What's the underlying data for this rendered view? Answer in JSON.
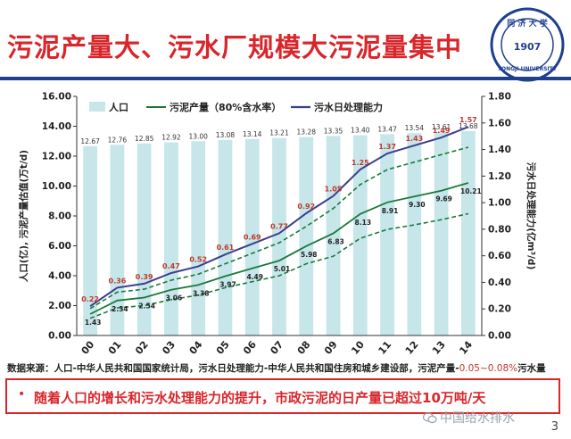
{
  "slide": {
    "title": "污泥产量大、污水厂规模大污泥量集中",
    "logo_text": "同济大学 1907 TONGJI UNIVERSITY",
    "source_note_main": "数据来源：人口-中华人民共和国国家统计局，污水日处理能力-中华人民共和国住房和城乡建设部，污泥产量-",
    "source_note_pct": "0.05~0.08%",
    "source_note_tail": "污水量",
    "callout_bullet": "•",
    "callout_text": "随着人口的增长和污水处理能力的提升，市政污泥的日产量已超过10万吨/天",
    "watermark": "中国给水排水",
    "page_number": "3"
  },
  "colors": {
    "title": "#d8262b",
    "rule": "#1f3f8f",
    "bar": "#c6e6ea",
    "sludge_line": "#1a7a3a",
    "capacity_line": "#3b3f8f",
    "capacity_label": "#c0392b"
  },
  "chart_data": {
    "type": "bar+line",
    "x": [
      "2000",
      "2001",
      "2002",
      "2003",
      "2004",
      "2005",
      "2006",
      "2007",
      "2008",
      "2009",
      "2010",
      "2011",
      "2012",
      "2013",
      "2014"
    ],
    "x_tick_labels": [
      "00",
      "01",
      "02",
      "03",
      "04",
      "05",
      "06",
      "07",
      "08",
      "09",
      "10",
      "11",
      "12",
      "13",
      "14"
    ],
    "ylabel": "人口(亿), 污泥产量估值(万t/d)",
    "y2label": "污水日处理能力(亿m³/d)",
    "ylim": [
      0,
      16
    ],
    "y_ticks": [
      "0.00",
      "2.00",
      "4.00",
      "6.00",
      "8.00",
      "10.00",
      "12.00",
      "14.00",
      "16.00"
    ],
    "y2lim": [
      0,
      1.8
    ],
    "y2_ticks": [
      "0.00",
      "0.20",
      "0.40",
      "0.60",
      "0.80",
      "1.00",
      "1.20",
      "1.40",
      "1.60",
      "1.80"
    ],
    "grid": false,
    "legend_position": "top",
    "series": [
      {
        "name": "人口",
        "type": "bar",
        "axis": "left",
        "values": [
          12.67,
          12.76,
          12.85,
          12.92,
          13.0,
          13.08,
          13.14,
          13.21,
          13.28,
          13.35,
          13.4,
          13.47,
          13.54,
          13.61,
          13.68
        ],
        "labels": [
          "12.67",
          "12.76",
          "12.85",
          "12.92",
          "13.00",
          "13.08",
          "13.14",
          "13.21",
          "13.28",
          "13.35",
          "13.40",
          "13.47",
          "13.54",
          "13.61",
          "13.68"
        ]
      },
      {
        "name": "污泥产量（80%含水率）",
        "type": "line",
        "axis": "left",
        "values": [
          1.43,
          2.34,
          2.54,
          3.06,
          3.38,
          3.97,
          4.49,
          5.01,
          5.98,
          6.83,
          8.13,
          8.91,
          9.3,
          9.69,
          10.21
        ],
        "labels": [
          "1.43",
          "2.34",
          "2.54",
          "3.06",
          "3.38",
          "3.97",
          "4.49",
          "5.01",
          "5.98",
          "6.83",
          "8.13",
          "8.91",
          "9.30",
          "9.69",
          "10.21"
        ],
        "upper_bound": [
          1.8,
          2.9,
          3.1,
          3.7,
          4.1,
          4.8,
          5.5,
          6.2,
          7.3,
          8.5,
          10.1,
          11.1,
          11.6,
          12.1,
          12.6
        ],
        "lower_bound": [
          1.15,
          1.85,
          2.0,
          2.4,
          2.7,
          3.2,
          3.6,
          4.0,
          4.8,
          5.3,
          6.5,
          7.1,
          7.4,
          7.75,
          8.15
        ]
      },
      {
        "name": "污水日处理能力",
        "type": "line",
        "axis": "right",
        "values": [
          0.22,
          0.36,
          0.39,
          0.47,
          0.52,
          0.61,
          0.69,
          0.77,
          0.92,
          1.05,
          1.25,
          1.37,
          1.43,
          1.49,
          1.57
        ],
        "labels": [
          "0.22",
          "0.36",
          "0.39",
          "0.47",
          "0.52",
          "0.61",
          "0.69",
          "0.77",
          "0.92",
          "1.05",
          "1.25",
          "1.37",
          "1.43",
          "1.49",
          "1.57"
        ]
      }
    ]
  }
}
